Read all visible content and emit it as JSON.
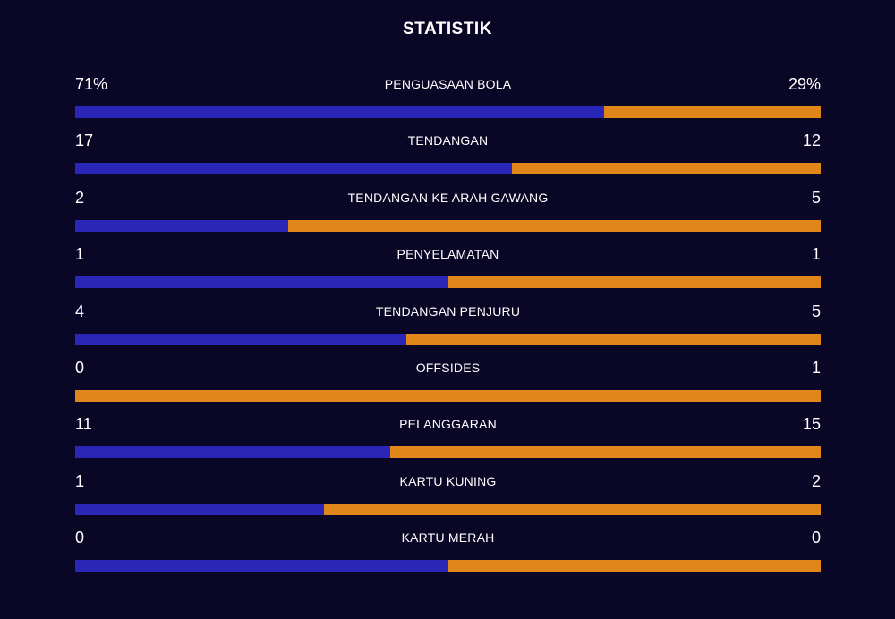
{
  "title": "STATISTIK",
  "colors": {
    "background": "#090725",
    "home": "#2a27b8",
    "away": "#e0861a",
    "text": "#ffffff"
  },
  "stats": [
    {
      "label": "PENGUASAAN BOLA",
      "home": "71%",
      "away": "29%",
      "home_value": 71,
      "away_value": 29
    },
    {
      "label": "TENDANGAN",
      "home": "17",
      "away": "12",
      "home_value": 17,
      "away_value": 12
    },
    {
      "label": "TENDANGAN KE ARAH GAWANG",
      "home": "2",
      "away": "5",
      "home_value": 2,
      "away_value": 5
    },
    {
      "label": "PENYELAMATAN",
      "home": "1",
      "away": "1",
      "home_value": 1,
      "away_value": 1
    },
    {
      "label": "TENDANGAN PENJURU",
      "home": "4",
      "away": "5",
      "home_value": 4,
      "away_value": 5
    },
    {
      "label": "OFFSIDES",
      "home": "0",
      "away": "1",
      "home_value": 0,
      "away_value": 1
    },
    {
      "label": "PELANGGARAN",
      "home": "11",
      "away": "15",
      "home_value": 11,
      "away_value": 15
    },
    {
      "label": "KARTU KUNING",
      "home": "1",
      "away": "2",
      "home_value": 1,
      "away_value": 2
    },
    {
      "label": "KARTU MERAH",
      "home": "0",
      "away": "0",
      "home_value": 0,
      "away_value": 0
    }
  ]
}
